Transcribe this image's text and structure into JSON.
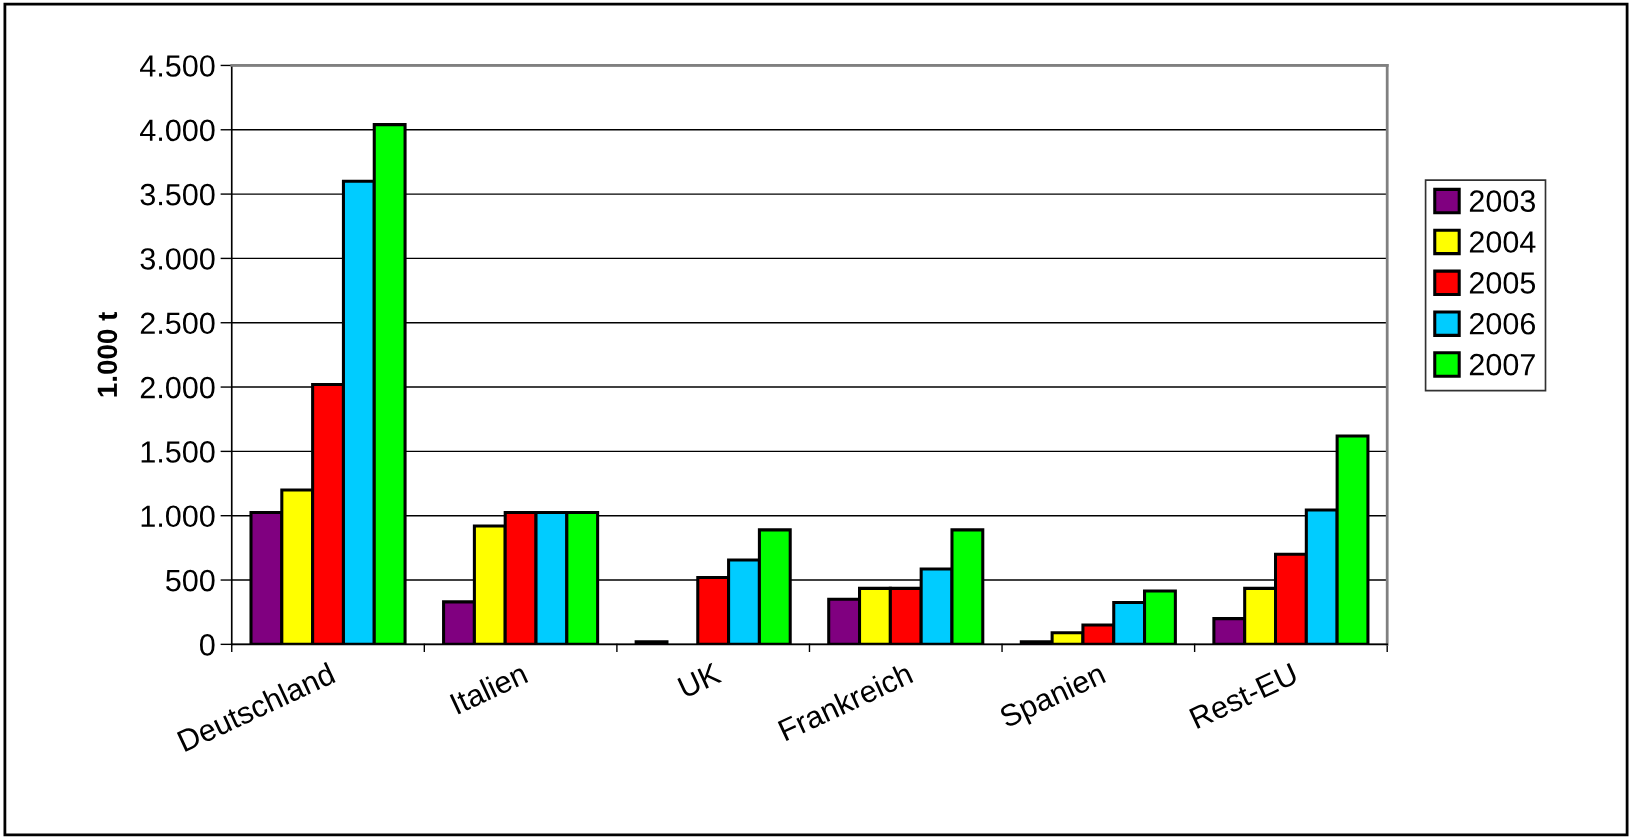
{
  "chart_data": {
    "type": "bar",
    "ylabel": "1.000 t",
    "categories": [
      "Deutschland",
      "Italien",
      "UK",
      "Frankreich",
      "Spanien",
      "Rest-EU"
    ],
    "series": [
      {
        "name": "2003",
        "color": "#800080",
        "values": [
          1025,
          330,
          20,
          350,
          20,
          200
        ]
      },
      {
        "name": "2004",
        "color": "#ffff00",
        "values": [
          1200,
          920,
          null,
          435,
          90,
          435
        ]
      },
      {
        "name": "2005",
        "color": "#ff0000",
        "values": [
          2020,
          1025,
          520,
          435,
          150,
          700
        ]
      },
      {
        "name": "2006",
        "color": "#00ccff",
        "values": [
          3600,
          1025,
          655,
          585,
          325,
          1045
        ]
      },
      {
        "name": "2007",
        "color": "#00ff00",
        "values": [
          4040,
          1025,
          890,
          890,
          415,
          1620
        ]
      }
    ],
    "ylim": [
      0,
      4500
    ],
    "yticks": [
      0,
      500,
      {
        "value": 1000,
        "label": "1.000"
      },
      {
        "value": 1500,
        "label": "1.500"
      },
      {
        "value": 2000,
        "label": "2.000"
      },
      {
        "value": 2500,
        "label": "2.500"
      },
      {
        "value": 3000,
        "label": "3.000"
      },
      {
        "value": 3500,
        "label": "3.500"
      },
      {
        "value": 4000,
        "label": "4.000"
      },
      {
        "value": 4500,
        "label": "4.500"
      }
    ],
    "grid": "y",
    "legend": "right"
  }
}
